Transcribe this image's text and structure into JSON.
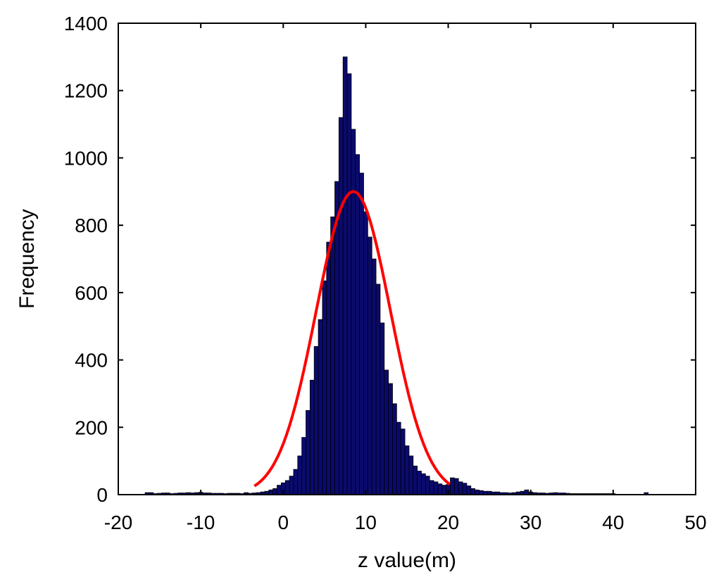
{
  "chart_data": {
    "type": "bar",
    "xlabel": "z value(m)",
    "ylabel": "Frequency",
    "xlim": [
      -20,
      50
    ],
    "ylim": [
      0,
      1400
    ],
    "xticks": [
      -20,
      -10,
      0,
      10,
      20,
      30,
      40,
      50
    ],
    "yticks": [
      0,
      200,
      400,
      600,
      800,
      1000,
      1200,
      1400
    ],
    "xtick_labels": [
      "-20",
      "-10",
      "0",
      "10",
      "20",
      "30",
      "40",
      "50"
    ],
    "ytick_labels": [
      "0",
      "200",
      "400",
      "600",
      "800",
      "1000",
      "1200",
      "1400"
    ],
    "grid": false,
    "bin_width": 0.5,
    "bar_color": "#0a0a6e",
    "bar_edge_color": "#000000",
    "series": [
      {
        "kind": "histogram",
        "bins": [
          {
            "x": -16.5,
            "value": 6
          },
          {
            "x": -16,
            "value": 6
          },
          {
            "x": -15.5,
            "value": 3
          },
          {
            "x": -15,
            "value": 4
          },
          {
            "x": -14.5,
            "value": 5
          },
          {
            "x": -14,
            "value": 5
          },
          {
            "x": -13.5,
            "value": 3
          },
          {
            "x": -13,
            "value": 4
          },
          {
            "x": -12.5,
            "value": 5
          },
          {
            "x": -12,
            "value": 5
          },
          {
            "x": -11.5,
            "value": 6
          },
          {
            "x": -11,
            "value": 5
          },
          {
            "x": -10.5,
            "value": 6
          },
          {
            "x": -10,
            "value": 7
          },
          {
            "x": -9.5,
            "value": 5
          },
          {
            "x": -9,
            "value": 5
          },
          {
            "x": -8.5,
            "value": 4
          },
          {
            "x": -8,
            "value": 4
          },
          {
            "x": -7.5,
            "value": 4
          },
          {
            "x": -7,
            "value": 3
          },
          {
            "x": -6.5,
            "value": 4
          },
          {
            "x": -6,
            "value": 4
          },
          {
            "x": -5.5,
            "value": 4
          },
          {
            "x": -5,
            "value": 3
          },
          {
            "x": -4.5,
            "value": 6
          },
          {
            "x": -4,
            "value": 4
          },
          {
            "x": -3.5,
            "value": 5
          },
          {
            "x": -3,
            "value": 6
          },
          {
            "x": -2.5,
            "value": 8
          },
          {
            "x": -2,
            "value": 10
          },
          {
            "x": -1.5,
            "value": 14
          },
          {
            "x": -1,
            "value": 18
          },
          {
            "x": -0.5,
            "value": 28
          },
          {
            "x": 0,
            "value": 35
          },
          {
            "x": 0.5,
            "value": 42
          },
          {
            "x": 1,
            "value": 55
          },
          {
            "x": 1.5,
            "value": 75
          },
          {
            "x": 2,
            "value": 115
          },
          {
            "x": 2.5,
            "value": 170
          },
          {
            "x": 3,
            "value": 250
          },
          {
            "x": 3.5,
            "value": 340
          },
          {
            "x": 4,
            "value": 440
          },
          {
            "x": 4.5,
            "value": 520
          },
          {
            "x": 5,
            "value": 635
          },
          {
            "x": 5.5,
            "value": 750
          },
          {
            "x": 6,
            "value": 825
          },
          {
            "x": 6.5,
            "value": 930
          },
          {
            "x": 7,
            "value": 1120
          },
          {
            "x": 7.5,
            "value": 1300
          },
          {
            "x": 8,
            "value": 1250
          },
          {
            "x": 8.5,
            "value": 1085
          },
          {
            "x": 9,
            "value": 1010
          },
          {
            "x": 9.5,
            "value": 955
          },
          {
            "x": 10,
            "value": 840
          },
          {
            "x": 10.5,
            "value": 765
          },
          {
            "x": 11,
            "value": 700
          },
          {
            "x": 11.5,
            "value": 625
          },
          {
            "x": 12,
            "value": 510
          },
          {
            "x": 12.5,
            "value": 370
          },
          {
            "x": 13,
            "value": 330
          },
          {
            "x": 13.5,
            "value": 270
          },
          {
            "x": 14,
            "value": 215
          },
          {
            "x": 14.5,
            "value": 195
          },
          {
            "x": 15,
            "value": 145
          },
          {
            "x": 15.5,
            "value": 115
          },
          {
            "x": 16,
            "value": 85
          },
          {
            "x": 16.5,
            "value": 70
          },
          {
            "x": 17,
            "value": 62
          },
          {
            "x": 17.5,
            "value": 55
          },
          {
            "x": 18,
            "value": 42
          },
          {
            "x": 18.5,
            "value": 38
          },
          {
            "x": 19,
            "value": 32
          },
          {
            "x": 19.5,
            "value": 28
          },
          {
            "x": 20,
            "value": 30
          },
          {
            "x": 20.5,
            "value": 50
          },
          {
            "x": 21,
            "value": 48
          },
          {
            "x": 21.5,
            "value": 38
          },
          {
            "x": 22,
            "value": 34
          },
          {
            "x": 22.5,
            "value": 26
          },
          {
            "x": 23,
            "value": 18
          },
          {
            "x": 23.5,
            "value": 14
          },
          {
            "x": 24,
            "value": 12
          },
          {
            "x": 24.5,
            "value": 10
          },
          {
            "x": 25,
            "value": 10
          },
          {
            "x": 25.5,
            "value": 8
          },
          {
            "x": 26,
            "value": 8
          },
          {
            "x": 26.5,
            "value": 6
          },
          {
            "x": 27,
            "value": 6
          },
          {
            "x": 27.5,
            "value": 5
          },
          {
            "x": 28,
            "value": 6
          },
          {
            "x": 28.5,
            "value": 8
          },
          {
            "x": 29,
            "value": 10
          },
          {
            "x": 29.5,
            "value": 14
          },
          {
            "x": 30,
            "value": 8
          },
          {
            "x": 30.5,
            "value": 6
          },
          {
            "x": 31,
            "value": 5
          },
          {
            "x": 31.5,
            "value": 5
          },
          {
            "x": 32,
            "value": 4
          },
          {
            "x": 32.5,
            "value": 5
          },
          {
            "x": 33,
            "value": 6
          },
          {
            "x": 33.5,
            "value": 5
          },
          {
            "x": 34,
            "value": 5
          },
          {
            "x": 34.5,
            "value": 4
          },
          {
            "x": 35,
            "value": 3
          },
          {
            "x": 35.5,
            "value": 3
          },
          {
            "x": 36,
            "value": 3
          },
          {
            "x": 36.5,
            "value": 3
          },
          {
            "x": 37,
            "value": 3
          },
          {
            "x": 37.5,
            "value": 3
          },
          {
            "x": 38,
            "value": 3
          },
          {
            "x": 38.5,
            "value": 3
          },
          {
            "x": 39,
            "value": 3
          },
          {
            "x": 39.5,
            "value": 3
          },
          {
            "x": 40,
            "value": 3
          },
          {
            "x": 44,
            "value": 6
          }
        ]
      },
      {
        "kind": "line",
        "color": "#ff0000",
        "fit": {
          "distribution": "normal",
          "mean": 8.5,
          "sd": 4.5,
          "peak": 900,
          "x_range": [
            -3.5,
            20.2
          ]
        }
      }
    ]
  }
}
